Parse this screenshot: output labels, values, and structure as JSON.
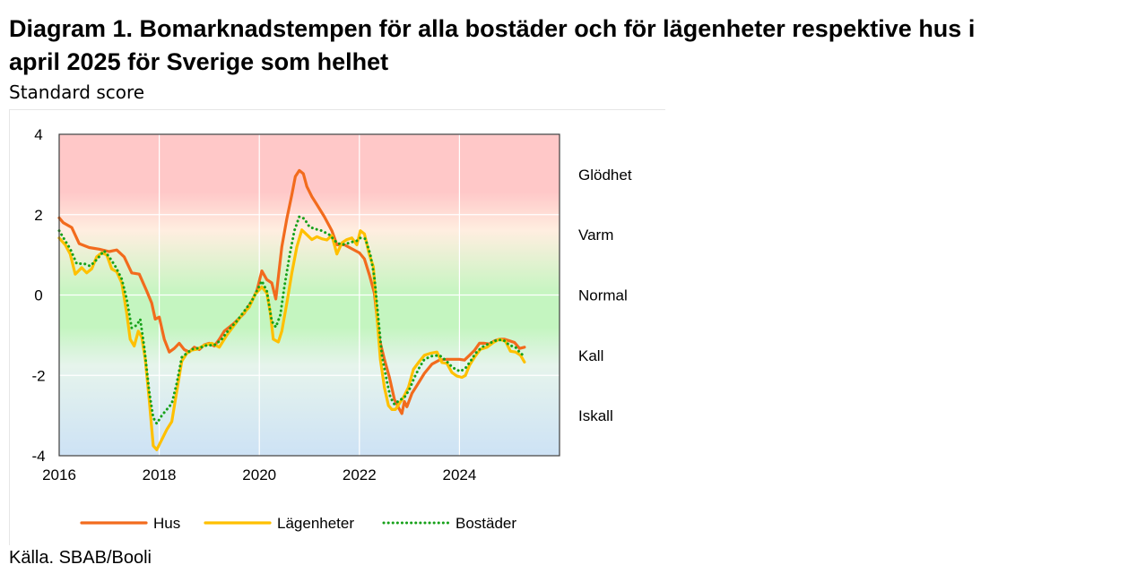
{
  "header": {
    "title_line1": "Diagram 1. Bomarknadstempen för alla bostäder och för lägenheter respektive hus i",
    "title_line2": "april 2025 för Sverige som helhet",
    "subtitle": "Standard score"
  },
  "footer": {
    "source": "Källa. SBAB/Booli"
  },
  "chart_data": {
    "type": "line",
    "ylabel": "Standard score",
    "xlim": [
      2016,
      2026
    ],
    "ylim": [
      -4,
      4
    ],
    "x_ticks": [
      2016,
      2018,
      2020,
      2022,
      2024
    ],
    "x_tick_labels": [
      "2016",
      "2018",
      "2020",
      "2022",
      "2024"
    ],
    "y_ticks": [
      4,
      2,
      0,
      -2,
      -4
    ],
    "y_tick_labels": [
      "4",
      "2",
      "0",
      "-2",
      "-4"
    ],
    "grid": true,
    "zones": [
      {
        "label": "Glödhet",
        "y": 3.0
      },
      {
        "label": "Varm",
        "y": 1.5
      },
      {
        "label": "Normal",
        "y": 0.0
      },
      {
        "label": "Kall",
        "y": -1.5
      },
      {
        "label": "Iskall",
        "y": -3.0
      }
    ],
    "background_colors": {
      "hot": "#ffc8c8",
      "warm": "#ffeee0",
      "normal": "#c4f5c0",
      "cold": "#e6f4ec",
      "freezing": "#cde2f5"
    },
    "legend_position": "bottom",
    "series": [
      {
        "name": "Hus",
        "color": "#f26b1d",
        "style": "solid",
        "points": [
          [
            2016.0,
            1.92
          ],
          [
            2016.08,
            1.8
          ],
          [
            2016.25,
            1.68
          ],
          [
            2016.4,
            1.28
          ],
          [
            2016.6,
            1.18
          ],
          [
            2016.8,
            1.14
          ],
          [
            2017.0,
            1.08
          ],
          [
            2017.15,
            1.12
          ],
          [
            2017.3,
            0.95
          ],
          [
            2017.45,
            0.55
          ],
          [
            2017.6,
            0.52
          ],
          [
            2017.75,
            0.1
          ],
          [
            2017.85,
            -0.2
          ],
          [
            2017.92,
            -0.6
          ],
          [
            2018.0,
            -0.55
          ],
          [
            2018.1,
            -1.1
          ],
          [
            2018.2,
            -1.42
          ],
          [
            2018.3,
            -1.33
          ],
          [
            2018.4,
            -1.2
          ],
          [
            2018.5,
            -1.36
          ],
          [
            2018.6,
            -1.42
          ],
          [
            2018.7,
            -1.3
          ],
          [
            2018.8,
            -1.36
          ],
          [
            2018.9,
            -1.24
          ],
          [
            2019.0,
            -1.2
          ],
          [
            2019.1,
            -1.27
          ],
          [
            2019.2,
            -1.1
          ],
          [
            2019.3,
            -0.9
          ],
          [
            2019.5,
            -0.7
          ],
          [
            2019.7,
            -0.45
          ],
          [
            2019.85,
            -0.15
          ],
          [
            2019.95,
            0.1
          ],
          [
            2020.05,
            0.6
          ],
          [
            2020.15,
            0.38
          ],
          [
            2020.25,
            0.3
          ],
          [
            2020.33,
            -0.1
          ],
          [
            2020.45,
            1.2
          ],
          [
            2020.55,
            1.9
          ],
          [
            2020.65,
            2.5
          ],
          [
            2020.72,
            2.95
          ],
          [
            2020.8,
            3.1
          ],
          [
            2020.88,
            3.02
          ],
          [
            2020.95,
            2.7
          ],
          [
            2021.05,
            2.45
          ],
          [
            2021.15,
            2.25
          ],
          [
            2021.3,
            1.95
          ],
          [
            2021.45,
            1.6
          ],
          [
            2021.55,
            1.25
          ],
          [
            2021.7,
            1.25
          ],
          [
            2021.85,
            1.15
          ],
          [
            2022.0,
            1.05
          ],
          [
            2022.1,
            0.9
          ],
          [
            2022.2,
            0.5
          ],
          [
            2022.3,
            0.05
          ],
          [
            2022.4,
            -1.1
          ],
          [
            2022.5,
            -1.6
          ],
          [
            2022.6,
            -2.05
          ],
          [
            2022.7,
            -2.6
          ],
          [
            2022.78,
            -2.8
          ],
          [
            2022.85,
            -2.95
          ],
          [
            2022.9,
            -2.65
          ],
          [
            2022.95,
            -2.78
          ],
          [
            2023.05,
            -2.45
          ],
          [
            2023.15,
            -2.25
          ],
          [
            2023.3,
            -1.95
          ],
          [
            2023.45,
            -1.72
          ],
          [
            2023.6,
            -1.62
          ],
          [
            2023.75,
            -1.6
          ],
          [
            2023.9,
            -1.6
          ],
          [
            2024.0,
            -1.6
          ],
          [
            2024.1,
            -1.62
          ],
          [
            2024.2,
            -1.5
          ],
          [
            2024.3,
            -1.38
          ],
          [
            2024.4,
            -1.2
          ],
          [
            2024.5,
            -1.2
          ],
          [
            2024.6,
            -1.22
          ],
          [
            2024.7,
            -1.14
          ],
          [
            2024.8,
            -1.1
          ],
          [
            2024.9,
            -1.1
          ],
          [
            2025.0,
            -1.14
          ],
          [
            2025.1,
            -1.18
          ],
          [
            2025.2,
            -1.33
          ],
          [
            2025.3,
            -1.3
          ]
        ]
      },
      {
        "name": "Lägenheter",
        "color": "#ffc000",
        "style": "solid",
        "points": [
          [
            2016.0,
            1.42
          ],
          [
            2016.12,
            1.25
          ],
          [
            2016.22,
            1.02
          ],
          [
            2016.32,
            0.52
          ],
          [
            2016.45,
            0.68
          ],
          [
            2016.55,
            0.55
          ],
          [
            2016.65,
            0.65
          ],
          [
            2016.75,
            0.95
          ],
          [
            2016.85,
            1.05
          ],
          [
            2016.95,
            1.0
          ],
          [
            2017.05,
            0.65
          ],
          [
            2017.15,
            0.58
          ],
          [
            2017.25,
            0.3
          ],
          [
            2017.35,
            -0.45
          ],
          [
            2017.42,
            -1.1
          ],
          [
            2017.5,
            -1.27
          ],
          [
            2017.58,
            -0.9
          ],
          [
            2017.65,
            -1.05
          ],
          [
            2017.72,
            -1.6
          ],
          [
            2017.8,
            -2.6
          ],
          [
            2017.88,
            -3.75
          ],
          [
            2017.95,
            -3.85
          ],
          [
            2018.05,
            -3.6
          ],
          [
            2018.15,
            -3.35
          ],
          [
            2018.25,
            -3.15
          ],
          [
            2018.35,
            -2.4
          ],
          [
            2018.45,
            -1.65
          ],
          [
            2018.55,
            -1.45
          ],
          [
            2018.65,
            -1.37
          ],
          [
            2018.75,
            -1.35
          ],
          [
            2018.9,
            -1.25
          ],
          [
            2019.05,
            -1.2
          ],
          [
            2019.2,
            -1.3
          ],
          [
            2019.35,
            -1.0
          ],
          [
            2019.5,
            -0.75
          ],
          [
            2019.65,
            -0.5
          ],
          [
            2019.8,
            -0.3
          ],
          [
            2019.92,
            0.02
          ],
          [
            2020.05,
            0.2
          ],
          [
            2020.15,
            0.05
          ],
          [
            2020.22,
            -0.45
          ],
          [
            2020.28,
            -1.1
          ],
          [
            2020.38,
            -1.17
          ],
          [
            2020.45,
            -0.9
          ],
          [
            2020.55,
            -0.2
          ],
          [
            2020.65,
            0.55
          ],
          [
            2020.75,
            1.2
          ],
          [
            2020.85,
            1.62
          ],
          [
            2020.95,
            1.5
          ],
          [
            2021.05,
            1.38
          ],
          [
            2021.15,
            1.45
          ],
          [
            2021.25,
            1.4
          ],
          [
            2021.35,
            1.37
          ],
          [
            2021.45,
            1.48
          ],
          [
            2021.55,
            1.02
          ],
          [
            2021.65,
            1.3
          ],
          [
            2021.75,
            1.38
          ],
          [
            2021.85,
            1.42
          ],
          [
            2021.95,
            1.25
          ],
          [
            2022.02,
            1.6
          ],
          [
            2022.1,
            1.52
          ],
          [
            2022.2,
            1.0
          ],
          [
            2022.28,
            0.7
          ],
          [
            2022.35,
            -0.5
          ],
          [
            2022.42,
            -1.6
          ],
          [
            2022.5,
            -2.3
          ],
          [
            2022.58,
            -2.75
          ],
          [
            2022.65,
            -2.85
          ],
          [
            2022.72,
            -2.85
          ],
          [
            2022.8,
            -2.7
          ],
          [
            2022.88,
            -2.55
          ],
          [
            2022.98,
            -2.3
          ],
          [
            2023.08,
            -1.85
          ],
          [
            2023.2,
            -1.65
          ],
          [
            2023.3,
            -1.5
          ],
          [
            2023.42,
            -1.45
          ],
          [
            2023.55,
            -1.42
          ],
          [
            2023.65,
            -1.68
          ],
          [
            2023.75,
            -1.7
          ],
          [
            2023.85,
            -1.93
          ],
          [
            2023.95,
            -2.02
          ],
          [
            2024.05,
            -2.05
          ],
          [
            2024.12,
            -2.0
          ],
          [
            2024.2,
            -1.75
          ],
          [
            2024.3,
            -1.55
          ],
          [
            2024.42,
            -1.35
          ],
          [
            2024.55,
            -1.3
          ],
          [
            2024.68,
            -1.18
          ],
          [
            2024.8,
            -1.1
          ],
          [
            2024.92,
            -1.15
          ],
          [
            2025.02,
            -1.4
          ],
          [
            2025.12,
            -1.42
          ],
          [
            2025.22,
            -1.5
          ],
          [
            2025.3,
            -1.67
          ]
        ]
      },
      {
        "name": "Bostäder",
        "color": "#17a11a",
        "style": "dotted",
        "points": [
          [
            2016.0,
            1.6
          ],
          [
            2016.12,
            1.35
          ],
          [
            2016.22,
            1.15
          ],
          [
            2016.35,
            0.78
          ],
          [
            2016.5,
            0.78
          ],
          [
            2016.62,
            0.72
          ],
          [
            2016.75,
            0.88
          ],
          [
            2016.9,
            1.1
          ],
          [
            2017.0,
            0.95
          ],
          [
            2017.12,
            0.72
          ],
          [
            2017.25,
            0.4
          ],
          [
            2017.35,
            -0.1
          ],
          [
            2017.45,
            -0.82
          ],
          [
            2017.55,
            -0.75
          ],
          [
            2017.62,
            -0.6
          ],
          [
            2017.7,
            -1.3
          ],
          [
            2017.8,
            -2.4
          ],
          [
            2017.88,
            -3.05
          ],
          [
            2017.95,
            -3.2
          ],
          [
            2018.05,
            -3.0
          ],
          [
            2018.15,
            -2.85
          ],
          [
            2018.25,
            -2.7
          ],
          [
            2018.35,
            -2.2
          ],
          [
            2018.45,
            -1.55
          ],
          [
            2018.55,
            -1.45
          ],
          [
            2018.65,
            -1.35
          ],
          [
            2018.8,
            -1.32
          ],
          [
            2018.95,
            -1.25
          ],
          [
            2019.1,
            -1.25
          ],
          [
            2019.25,
            -1.1
          ],
          [
            2019.4,
            -0.85
          ],
          [
            2019.55,
            -0.65
          ],
          [
            2019.7,
            -0.4
          ],
          [
            2019.85,
            -0.15
          ],
          [
            2019.95,
            0.1
          ],
          [
            2020.05,
            0.35
          ],
          [
            2020.15,
            0.1
          ],
          [
            2020.25,
            -0.65
          ],
          [
            2020.33,
            -0.8
          ],
          [
            2020.42,
            -0.5
          ],
          [
            2020.5,
            0.2
          ],
          [
            2020.6,
            0.95
          ],
          [
            2020.7,
            1.6
          ],
          [
            2020.8,
            1.95
          ],
          [
            2020.9,
            1.9
          ],
          [
            2021.0,
            1.7
          ],
          [
            2021.1,
            1.65
          ],
          [
            2021.25,
            1.6
          ],
          [
            2021.4,
            1.5
          ],
          [
            2021.55,
            1.3
          ],
          [
            2021.65,
            1.25
          ],
          [
            2021.75,
            1.28
          ],
          [
            2021.85,
            1.32
          ],
          [
            2021.95,
            1.35
          ],
          [
            2022.02,
            1.42
          ],
          [
            2022.12,
            1.4
          ],
          [
            2022.22,
            1.0
          ],
          [
            2022.3,
            0.45
          ],
          [
            2022.38,
            -0.6
          ],
          [
            2022.45,
            -1.5
          ],
          [
            2022.55,
            -2.15
          ],
          [
            2022.62,
            -2.55
          ],
          [
            2022.7,
            -2.72
          ],
          [
            2022.8,
            -2.62
          ],
          [
            2022.9,
            -2.55
          ],
          [
            2023.0,
            -2.35
          ],
          [
            2023.1,
            -2.05
          ],
          [
            2023.2,
            -1.8
          ],
          [
            2023.3,
            -1.6
          ],
          [
            2023.45,
            -1.52
          ],
          [
            2023.6,
            -1.5
          ],
          [
            2023.72,
            -1.62
          ],
          [
            2023.82,
            -1.75
          ],
          [
            2023.92,
            -1.85
          ],
          [
            2024.02,
            -1.9
          ],
          [
            2024.12,
            -1.82
          ],
          [
            2024.22,
            -1.65
          ],
          [
            2024.32,
            -1.45
          ],
          [
            2024.45,
            -1.3
          ],
          [
            2024.6,
            -1.2
          ],
          [
            2024.75,
            -1.12
          ],
          [
            2024.88,
            -1.12
          ],
          [
            2025.0,
            -1.25
          ],
          [
            2025.12,
            -1.3
          ],
          [
            2025.22,
            -1.45
          ],
          [
            2025.3,
            -1.52
          ]
        ]
      }
    ]
  }
}
